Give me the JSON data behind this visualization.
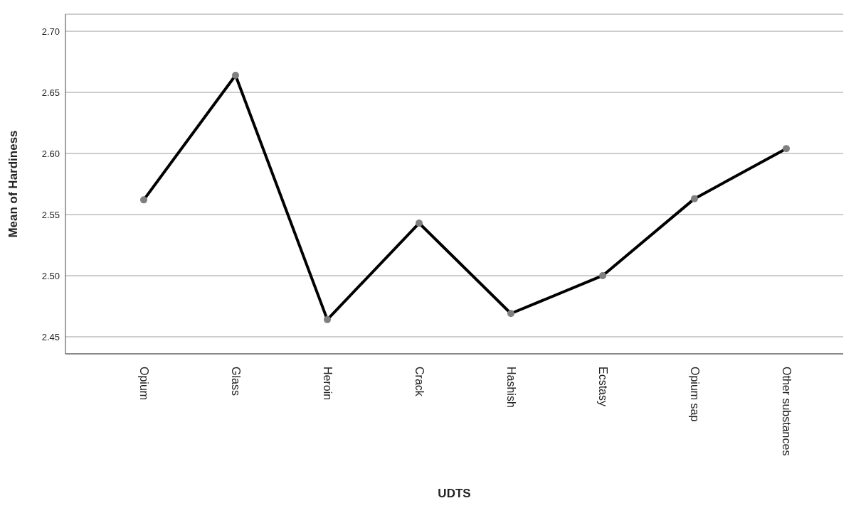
{
  "chart_data": {
    "type": "line",
    "xlabel": "UDTS",
    "ylabel": "Mean of Hardiness",
    "categories": [
      "Opium",
      "Glass",
      "Heroin",
      "Crack",
      "Hashish",
      "Ecstasy",
      "Opium sap",
      "Other substances"
    ],
    "series": [
      {
        "color": "#000000",
        "values": [
          2.562,
          2.664,
          2.464,
          2.543,
          2.469,
          2.5,
          2.563,
          2.604
        ]
      }
    ],
    "ylim": [
      2.436,
      2.714
    ],
    "yticks": [
      2.45,
      {
        "value": 2.5,
        "label": "2.50"
      },
      2.55,
      {
        "value": 2.6,
        "label": "2.60"
      },
      2.65,
      {
        "value": 2.7,
        "label": "2.70"
      }
    ],
    "grid": "y",
    "marker": "circle",
    "line_style": "solid"
  }
}
